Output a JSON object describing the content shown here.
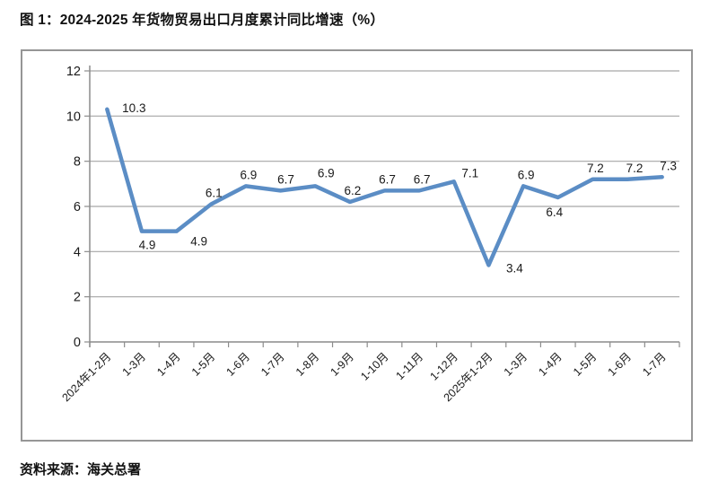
{
  "figure": {
    "title": "图 1：2024-2025 年货物贸易出口月度累计同比增速（%）",
    "source": "资料来源：海关总署"
  },
  "chart_data": {
    "type": "line",
    "title": "图 1：2024-2025 年货物贸易出口月度累计同比增速（%）",
    "categories": [
      "2024年1-2月",
      "1-3月",
      "1-4月",
      "1-5月",
      "1-6月",
      "1-7月",
      "1-8月",
      "1-9月",
      "1-10月",
      "1-11月",
      "1-12月",
      "2025年1-2月",
      "1-3月",
      "1-4月",
      "1-5月",
      "1-6月",
      "1-7月"
    ],
    "values": [
      10.3,
      4.9,
      4.9,
      6.1,
      6.9,
      6.7,
      6.9,
      6.2,
      6.7,
      6.7,
      7.1,
      3.4,
      6.9,
      6.4,
      7.2,
      7.2,
      7.3
    ],
    "xlabel": "",
    "ylabel": "",
    "ylim": [
      0,
      12
    ],
    "yticks": [
      0,
      2,
      4,
      6,
      8,
      10,
      12
    ],
    "grid": "horizontal",
    "legend": "none",
    "data_labels_shown": true,
    "colors": {
      "line": "#5B8DC5",
      "gridline": "#A6A6A6",
      "axis": "#8C8C8C",
      "tick_text": "#1a1a1a",
      "data_label_text": "#1a1a1a"
    }
  }
}
